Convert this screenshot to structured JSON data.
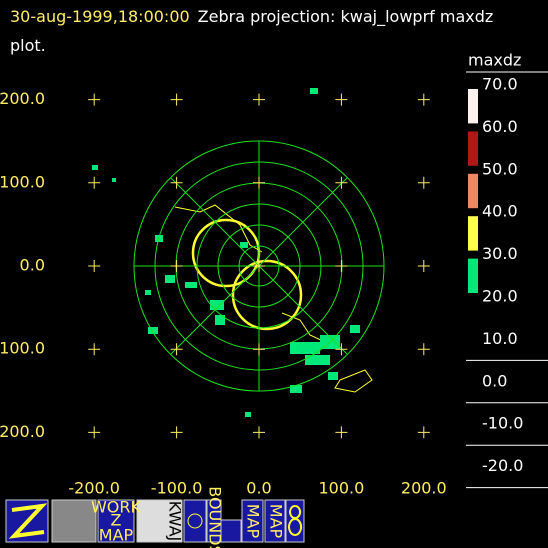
{
  "header": {
    "timestamp": "30-aug-1999,18:00:00",
    "title": "Zebra projection: kwaj_lowprf maxdz plot."
  },
  "chart_data": {
    "type": "ppi",
    "xlim": [
      -250,
      250
    ],
    "ylim": [
      -250,
      250
    ],
    "xticks": [
      {
        "value": -200,
        "label": "-200.0"
      },
      {
        "value": -100,
        "label": "-100.0"
      },
      {
        "value": 0,
        "label": "0.0"
      },
      {
        "value": 100,
        "label": "100.0"
      },
      {
        "value": 200,
        "label": "200.0"
      }
    ],
    "yticks": [
      {
        "value": -200,
        "label": "-200.0"
      },
      {
        "value": -100,
        "label": "-100.0"
      },
      {
        "value": 0,
        "label": "0.0"
      },
      {
        "value": 100,
        "label": "100.0"
      },
      {
        "value": 200,
        "label": "200.0"
      }
    ],
    "grid": "crosses",
    "colorbar": {
      "title": "maxdz",
      "levels": [
        {
          "value": 70,
          "label": "70.0"
        },
        {
          "value": 60,
          "label": "60.0"
        },
        {
          "value": 50,
          "label": "50.0"
        },
        {
          "value": 40,
          "label": "40.0"
        },
        {
          "value": 30,
          "label": "30.0"
        },
        {
          "value": 20,
          "label": "20.0"
        }
      ],
      "colors": [
        "#fff0f0",
        "#b01818",
        "#f08868",
        "#ffff50",
        "#00e878"
      ],
      "extra_levels": [
        {
          "value": 10,
          "label": "10.0"
        },
        {
          "value": 0,
          "label": "0.0"
        },
        {
          "value": -10,
          "label": "-10.0"
        },
        {
          "value": -20,
          "label": "-20.0"
        }
      ]
    }
  },
  "toolbar": {
    "icons": [
      "WORK",
      "Z",
      "MAP",
      "KWAJ",
      "BOUNDS",
      "MAP",
      "MAP"
    ]
  }
}
